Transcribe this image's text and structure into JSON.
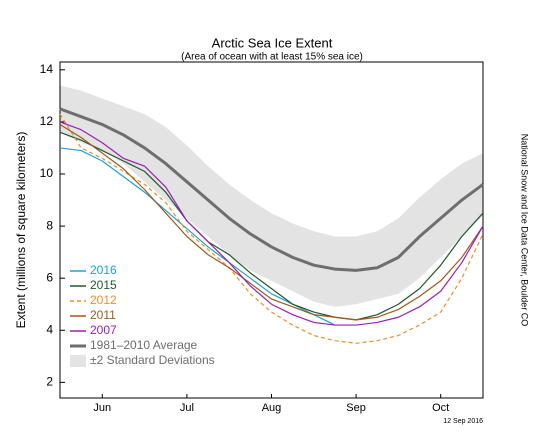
{
  "chart_data": {
    "type": "line",
    "title": "Arctic Sea Ice Extent",
    "subtitle": "(Area of ocean with at least 15% sea ice)",
    "y_label": "Extent (millions of square kilometers)",
    "source": "National Snow and Ice Data Center, Boulder CO",
    "date": "12 Sep 2016",
    "categories": [
      null,
      null,
      "Jun",
      null,
      null,
      null,
      "Jul",
      null,
      null,
      null,
      "Aug",
      null,
      null,
      null,
      "Sep",
      null,
      null,
      null,
      "Oct",
      null,
      null
    ],
    "ylim": [
      1.4,
      14.3
    ],
    "yticks": [
      2,
      4,
      6,
      8,
      10,
      12,
      14
    ],
    "band": {
      "name": "±2 Standard Deviations",
      "color": "#e3e3e3",
      "upper": [
        13.4,
        13.2,
        12.9,
        12.6,
        12.3,
        11.8,
        11.1,
        10.3,
        9.6,
        9.0,
        8.5,
        8.1,
        7.8,
        7.6,
        7.6,
        7.8,
        8.3,
        9.1,
        9.8,
        10.4,
        10.8
      ],
      "lower": [
        11.6,
        11.2,
        10.9,
        10.4,
        9.7,
        9.0,
        8.3,
        7.6,
        6.9,
        6.3,
        5.9,
        5.5,
        5.1,
        4.9,
        5.0,
        5.2,
        5.4,
        6.0,
        6.8,
        7.6,
        8.4
      ]
    },
    "series": [
      {
        "name": "2016",
        "color": "#1aa3d6",
        "values": [
          11.0,
          10.9,
          10.5,
          9.9,
          9.3,
          8.6,
          7.9,
          7.2,
          6.6,
          6.0,
          5.4,
          5.0,
          4.6,
          4.2,
          null,
          null,
          null,
          null,
          null,
          null,
          null
        ]
      },
      {
        "name": "2015",
        "color": "#1d5a2c",
        "values": [
          11.6,
          11.3,
          10.9,
          10.5,
          10.1,
          9.3,
          8.2,
          7.4,
          6.9,
          6.2,
          5.6,
          5.0,
          4.7,
          4.5,
          4.4,
          4.6,
          5.0,
          5.6,
          6.5,
          7.6,
          8.5
        ]
      },
      {
        "name": "2012",
        "color": "#e8902a",
        "dashed": true,
        "values": [
          12.3,
          11.0,
          10.6,
          10.1,
          9.6,
          8.9,
          7.8,
          7.1,
          6.4,
          5.4,
          4.7,
          4.2,
          3.8,
          3.6,
          3.5,
          3.6,
          3.8,
          4.2,
          4.7,
          6.0,
          7.7
        ]
      },
      {
        "name": "2011",
        "color": "#a05a1e",
        "values": [
          11.9,
          11.4,
          10.8,
          10.2,
          9.4,
          8.5,
          7.6,
          6.9,
          6.4,
          5.8,
          5.2,
          4.9,
          4.6,
          4.5,
          4.4,
          4.5,
          4.8,
          5.3,
          5.9,
          6.8,
          8.0
        ]
      },
      {
        "name": "2007",
        "color": "#9b1fb5",
        "values": [
          12.0,
          11.7,
          11.2,
          10.6,
          10.3,
          9.5,
          8.2,
          7.4,
          6.6,
          5.7,
          5.0,
          4.6,
          4.3,
          4.2,
          4.2,
          4.3,
          4.5,
          4.9,
          5.5,
          6.6,
          8.0
        ]
      },
      {
        "name": "1981–2010 Average",
        "color": "#6e6e6e",
        "width": 3,
        "values": [
          12.5,
          12.2,
          11.9,
          11.5,
          11.0,
          10.4,
          9.7,
          9.0,
          8.3,
          7.7,
          7.2,
          6.8,
          6.5,
          6.35,
          6.3,
          6.4,
          6.8,
          7.6,
          8.3,
          9.0,
          9.6
        ]
      }
    ]
  }
}
